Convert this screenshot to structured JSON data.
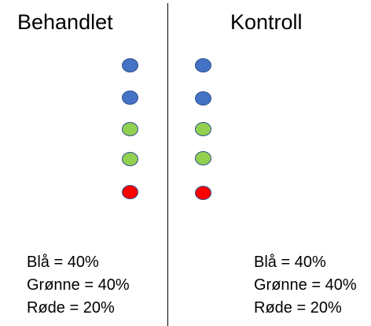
{
  "left": {
    "title": "Behandlet",
    "dots": [
      {
        "color": "#4472c4"
      },
      {
        "color": "#4472c4"
      },
      {
        "color": "#92d050"
      },
      {
        "color": "#92d050"
      },
      {
        "color": "#ff0000"
      }
    ],
    "stats": [
      "Blå = 40%",
      "Grønne = 40%",
      "Røde = 20%"
    ]
  },
  "right": {
    "title": "Kontroll",
    "dots": [
      {
        "color": "#4472c4"
      },
      {
        "color": "#4472c4"
      },
      {
        "color": "#92d050"
      },
      {
        "color": "#92d050"
      },
      {
        "color": "#ff0000"
      }
    ],
    "stats": [
      "Blå = 40%",
      "Grønne = 40%",
      "Røde = 20%"
    ]
  },
  "colors": {
    "blue": "#4472c4",
    "green": "#92d050",
    "red": "#ff0000",
    "outline": "#2f528f"
  }
}
